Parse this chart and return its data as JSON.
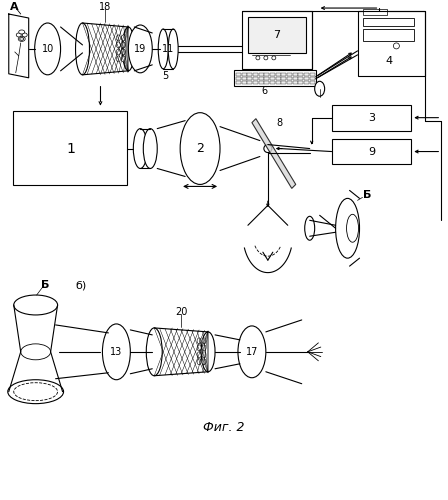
{
  "fig_title": "Фиг. 2",
  "bg": "#ffffff",
  "lc": "#000000",
  "fig_w": 4.48,
  "fig_h": 5.0,
  "dpi": 100,
  "label_A": "А",
  "label_B": "Б",
  "label_b": "б)"
}
